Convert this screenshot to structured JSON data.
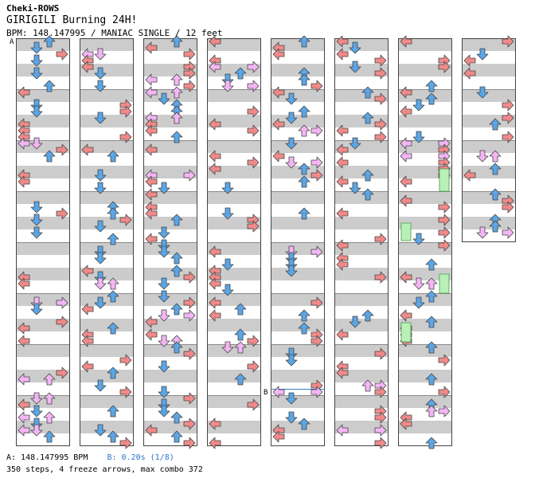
{
  "header": {
    "site": "Cheki-ROWS",
    "song_title": "GIRIGILI Burning 24H!",
    "info_line": "BPM: 148.147995 / MANIAC SINGLE / 12 feet"
  },
  "markers": {
    "a_label": "A",
    "b_label": "B"
  },
  "footer": {
    "bpm_text": "A: 148.147995 BPM",
    "stop_text": "B: 0.20s (1/8)",
    "stats_text": "350 steps, 4 freeze arrows, max combo 372"
  },
  "colors": {
    "left": "#f08a8a",
    "down": "#5aa6e6",
    "up": "#5aa6e6",
    "right": "#f08a8a",
    "jump": "#f4b6f4",
    "freeze": "#b8f0b8",
    "stripe": "#cccccc",
    "stop_line": "#3a78c8"
  },
  "chart": {
    "measures_total": 60,
    "measures_per_column": 8,
    "columns": 8,
    "arrow_types": [
      "left-arrow",
      "down-arrow",
      "up-arrow",
      "right-arrow"
    ],
    "freeze_count": 4
  }
}
